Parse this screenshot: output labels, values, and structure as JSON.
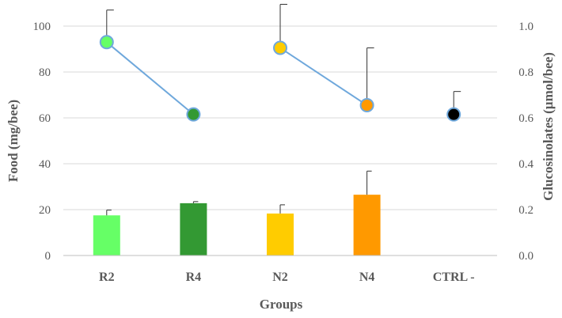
{
  "chart_data": {
    "type": "bar+line",
    "categories": [
      "R2",
      "R4",
      "N2",
      "N4",
      "CTRL -"
    ],
    "xlabel": "Groups",
    "ylabel_left": "Food (mg/bee)",
    "ylabel_right": "Glucosinolates (µmol/bee)",
    "y_left": {
      "min": 0,
      "max": 100,
      "ticks": [
        "0",
        "20",
        "40",
        "60",
        "80",
        "100"
      ],
      "values": [
        0,
        20,
        40,
        60,
        80,
        100
      ]
    },
    "y_right": {
      "min": 0,
      "max": 1.0,
      "ticks": [
        "0.0",
        "0.2",
        "0.4",
        "0.6",
        "0.8",
        "1.0"
      ],
      "values": [
        0,
        0.2,
        0.4,
        0.6,
        0.8,
        1.0
      ]
    },
    "grid": "horizontal",
    "bars": {
      "name": "Food",
      "axis": "left",
      "values": [
        17.5,
        22.8,
        18.3,
        26.5,
        null
      ],
      "error_plus": [
        2.3,
        0.7,
        3.8,
        10.3,
        null
      ],
      "colors": [
        "#66ff66",
        "#339933",
        "#ffcc00",
        "#ff9900",
        null
      ]
    },
    "points": {
      "name": "Glucosinolates",
      "axis": "right",
      "values": [
        0.93,
        0.615,
        0.905,
        0.655,
        0.615
      ],
      "error_plus": [
        0.14,
        0.0,
        0.19,
        0.25,
        0.1
      ],
      "colors": [
        "#66ff66",
        "#339933",
        "#ffcc00",
        "#ff9900",
        "#000000"
      ],
      "connected_pairs": [
        [
          0,
          1
        ],
        [
          2,
          3
        ]
      ],
      "line_color": "#6fa8dc",
      "marker_edge": "#6fa8dc"
    }
  }
}
